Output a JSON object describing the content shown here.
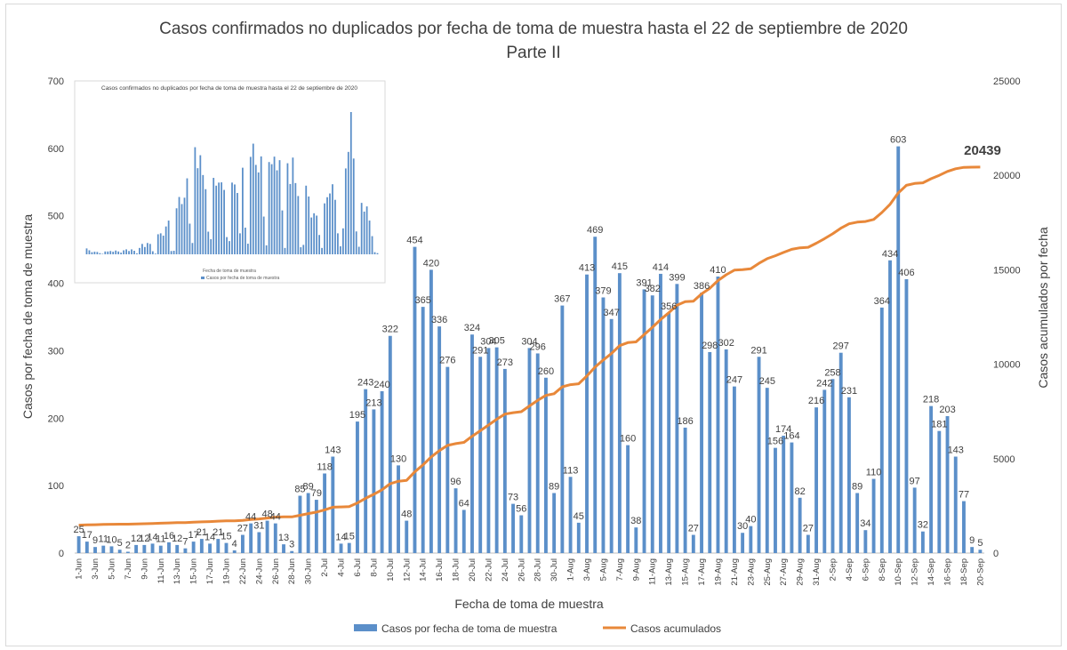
{
  "chart_data": {
    "type": "bar",
    "title": "Casos confirmados no duplicados por fecha de toma de muestra hasta el 22 de septiembre de 2020",
    "subtitle": "Parte II",
    "xlabel": "Fecha de toma de muestra",
    "ylabel": "Casos por fecha de toma de muestra",
    "y2label": "Casos acumulados por fecha",
    "ylim": [
      0,
      700
    ],
    "y2lim": [
      0,
      25000
    ],
    "yticks": [
      "0",
      "100",
      "200",
      "300",
      "400",
      "500",
      "600",
      "700"
    ],
    "y2ticks": [
      "0",
      "5000",
      "10000",
      "15000",
      "20000",
      "25000"
    ],
    "x_tick_labels": [
      "1-Jun",
      "3-Jun",
      "5-Jun",
      "7-Jun",
      "9-Jun",
      "11-Jun",
      "13-Jun",
      "15-Jun",
      "17-Jun",
      "19-Jun",
      "22-Jun",
      "24-Jun",
      "26-Jun",
      "28-Jun",
      "30-Jun",
      "2-Jul",
      "4-Jul",
      "6-Jul",
      "8-Jul",
      "10-Jul",
      "12-Jul",
      "14-Jul",
      "16-Jul",
      "18-Jul",
      "20-Jul",
      "22-Jul",
      "24-Jul",
      "26-Jul",
      "28-Jul",
      "30-Jul",
      "1-Aug",
      "3-Aug",
      "5-Aug",
      "7-Aug",
      "9-Aug",
      "11-Aug",
      "13-Aug",
      "15-Aug",
      "17-Aug",
      "19-Aug",
      "21-Aug",
      "23-Aug",
      "25-Aug",
      "27-Aug",
      "29-Aug",
      "31-Aug",
      "2-Sep",
      "4-Sep",
      "6-Sep",
      "8-Sep",
      "10-Sep",
      "12-Sep",
      "14-Sep",
      "16-Sep",
      "18-Sep",
      "20-Sep"
    ],
    "series": [
      {
        "name": "Casos por fecha de toma de muestra",
        "type": "bar",
        "color": "#5b8fc9",
        "values": [
          25,
          17,
          9,
          11,
          10,
          5,
          2,
          12,
          12,
          14,
          11,
          16,
          12,
          7,
          17,
          21,
          14,
          21,
          15,
          4,
          27,
          44,
          31,
          48,
          44,
          13,
          3,
          85,
          89,
          79,
          118,
          143,
          14,
          15,
          195,
          243,
          213,
          240,
          322,
          130,
          48,
          454,
          365,
          420,
          336,
          276,
          96,
          64,
          324,
          291,
          304,
          305,
          273,
          73,
          56,
          304,
          296,
          260,
          89,
          367,
          113,
          45,
          413,
          469,
          379,
          347,
          415,
          160,
          38,
          391,
          382,
          414,
          356,
          399,
          186,
          27,
          386,
          298,
          410,
          302,
          247,
          30,
          40,
          291,
          245,
          156,
          174,
          164,
          82,
          27,
          216,
          242,
          258,
          297,
          231,
          89,
          34,
          110,
          364,
          434,
          603,
          406,
          97,
          32,
          218,
          181,
          203,
          143,
          77,
          9,
          5
        ]
      },
      {
        "name": "Casos acumulados",
        "type": "line",
        "color": "#e8883a",
        "final_value_label": "20439"
      }
    ],
    "legend_position": "bottom",
    "inset": {
      "title": "Casos confirmados no duplicados por fecha de toma de muestra hasta el 22 de septiembre de 2020",
      "xlabel": "Fecha de toma de muestra",
      "legend": "Casos por fecha de toma de muestra"
    }
  }
}
